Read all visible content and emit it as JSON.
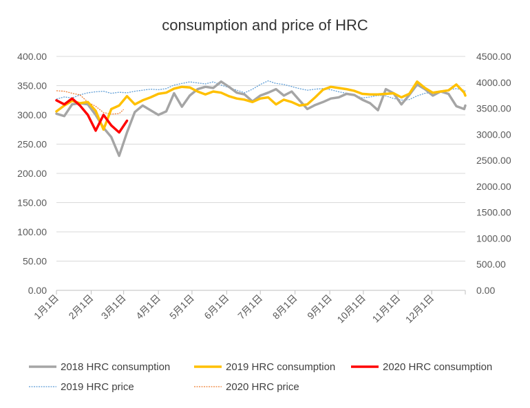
{
  "chart_data": {
    "type": "line",
    "title": "consumption and price of HRC",
    "x_axis": {
      "type": "date",
      "range": [
        "2020-01-01",
        "2020-12-31"
      ],
      "tick_labels": [
        "1月1日",
        "2月1日",
        "3月1日",
        "4月1日",
        "5月1日",
        "6月1日",
        "7月1日",
        "8月1日",
        "9月1日",
        "10月1日",
        "11月1日",
        "12月1日"
      ],
      "tick_dates": [
        "2020-01-01",
        "2020-02-01",
        "2020-03-01",
        "2020-04-01",
        "2020-05-01",
        "2020-06-01",
        "2020-07-01",
        "2020-08-01",
        "2020-09-01",
        "2020-10-01",
        "2020-11-01",
        "2020-12-01"
      ]
    },
    "y_axis_left": {
      "ylim": [
        0,
        400
      ],
      "tick_labels": [
        "0.00",
        "50.00",
        "100.00",
        "150.00",
        "200.00",
        "250.00",
        "300.00",
        "350.00",
        "400.00"
      ]
    },
    "y_axis_right": {
      "ylim": [
        0,
        4500
      ],
      "tick_labels": [
        "0.00",
        "500.00",
        "1000.00",
        "1500.00",
        "2000.00",
        "2500.00",
        "3000.00",
        "3500.00",
        "4000.00",
        "4500.00"
      ]
    },
    "grid": "horizontal",
    "legend_position": "bottom",
    "series": [
      {
        "name": "2018 HRC consumption",
        "axis": "left",
        "color": "#a5a5a5",
        "style": "solid",
        "points": [
          [
            "2020-01-01",
            302
          ],
          [
            "2020-01-08",
            298
          ],
          [
            "2020-01-15",
            318
          ],
          [
            "2020-01-22",
            320
          ],
          [
            "2020-01-29",
            318
          ],
          [
            "2020-02-05",
            300
          ],
          [
            "2020-02-12",
            278
          ],
          [
            "2020-02-19",
            262
          ],
          [
            "2020-02-26",
            230
          ],
          [
            "2020-03-04",
            270
          ],
          [
            "2020-03-11",
            305
          ],
          [
            "2020-03-18",
            316
          ],
          [
            "2020-03-25",
            308
          ],
          [
            "2020-04-01",
            300
          ],
          [
            "2020-04-08",
            306
          ],
          [
            "2020-04-15",
            337
          ],
          [
            "2020-04-22",
            314
          ],
          [
            "2020-04-29",
            333
          ],
          [
            "2020-05-06",
            344
          ],
          [
            "2020-05-13",
            348
          ],
          [
            "2020-05-20",
            346
          ],
          [
            "2020-05-27",
            357
          ],
          [
            "2020-06-03",
            348
          ],
          [
            "2020-06-10",
            338
          ],
          [
            "2020-06-17",
            335
          ],
          [
            "2020-06-24",
            323
          ],
          [
            "2020-07-01",
            333
          ],
          [
            "2020-07-08",
            338
          ],
          [
            "2020-07-15",
            344
          ],
          [
            "2020-07-22",
            333
          ],
          [
            "2020-07-29",
            340
          ],
          [
            "2020-08-05",
            325
          ],
          [
            "2020-08-12",
            310
          ],
          [
            "2020-08-19",
            317
          ],
          [
            "2020-08-26",
            322
          ],
          [
            "2020-09-02",
            328
          ],
          [
            "2020-09-09",
            330
          ],
          [
            "2020-09-16",
            336
          ],
          [
            "2020-09-23",
            334
          ],
          [
            "2020-09-30",
            326
          ],
          [
            "2020-10-07",
            320
          ],
          [
            "2020-10-14",
            308
          ],
          [
            "2020-10-21",
            344
          ],
          [
            "2020-10-28",
            337
          ],
          [
            "2020-11-04",
            318
          ],
          [
            "2020-11-11",
            334
          ],
          [
            "2020-11-18",
            352
          ],
          [
            "2020-11-25",
            344
          ],
          [
            "2020-12-02",
            333
          ],
          [
            "2020-12-09",
            340
          ],
          [
            "2020-12-16",
            336
          ],
          [
            "2020-12-23",
            315
          ],
          [
            "2020-12-30",
            310
          ],
          [
            "2020-12-31",
            316
          ]
        ]
      },
      {
        "name": "2019 HRC consumption",
        "axis": "left",
        "color": "#ffc000",
        "style": "solid",
        "points": [
          [
            "2020-01-01",
            306
          ],
          [
            "2020-01-08",
            316
          ],
          [
            "2020-01-15",
            324
          ],
          [
            "2020-01-22",
            320
          ],
          [
            "2020-01-29",
            322
          ],
          [
            "2020-02-05",
            307
          ],
          [
            "2020-02-12",
            275
          ],
          [
            "2020-02-19",
            310
          ],
          [
            "2020-02-26",
            316
          ],
          [
            "2020-03-04",
            332
          ],
          [
            "2020-03-11",
            318
          ],
          [
            "2020-03-18",
            325
          ],
          [
            "2020-03-25",
            330
          ],
          [
            "2020-04-01",
            336
          ],
          [
            "2020-04-08",
            338
          ],
          [
            "2020-04-15",
            345
          ],
          [
            "2020-04-22",
            348
          ],
          [
            "2020-04-29",
            347
          ],
          [
            "2020-05-06",
            340
          ],
          [
            "2020-05-13",
            335
          ],
          [
            "2020-05-20",
            340
          ],
          [
            "2020-05-27",
            338
          ],
          [
            "2020-06-03",
            332
          ],
          [
            "2020-06-10",
            328
          ],
          [
            "2020-06-17",
            326
          ],
          [
            "2020-06-24",
            322
          ],
          [
            "2020-07-01",
            328
          ],
          [
            "2020-07-08",
            330
          ],
          [
            "2020-07-15",
            318
          ],
          [
            "2020-07-22",
            326
          ],
          [
            "2020-07-29",
            322
          ],
          [
            "2020-08-05",
            316
          ],
          [
            "2020-08-12",
            318
          ],
          [
            "2020-08-19",
            330
          ],
          [
            "2020-08-26",
            343
          ],
          [
            "2020-09-02",
            348
          ],
          [
            "2020-09-09",
            346
          ],
          [
            "2020-09-16",
            344
          ],
          [
            "2020-09-23",
            341
          ],
          [
            "2020-09-30",
            336
          ],
          [
            "2020-10-07",
            335
          ],
          [
            "2020-10-14",
            335
          ],
          [
            "2020-10-21",
            336
          ],
          [
            "2020-10-28",
            337
          ],
          [
            "2020-11-04",
            330
          ],
          [
            "2020-11-11",
            336
          ],
          [
            "2020-11-18",
            357
          ],
          [
            "2020-11-25",
            346
          ],
          [
            "2020-12-02",
            338
          ],
          [
            "2020-12-09",
            340
          ],
          [
            "2020-12-16",
            342
          ],
          [
            "2020-12-23",
            352
          ],
          [
            "2020-12-30",
            338
          ],
          [
            "2020-12-31",
            333
          ]
        ]
      },
      {
        "name": "2020 HRC consumption",
        "axis": "left",
        "color": "#ff0000",
        "style": "solid",
        "points": [
          [
            "2020-01-01",
            325
          ],
          [
            "2020-01-08",
            318
          ],
          [
            "2020-01-15",
            328
          ],
          [
            "2020-01-22",
            316
          ],
          [
            "2020-01-29",
            300
          ],
          [
            "2020-02-05",
            273
          ],
          [
            "2020-02-12",
            300
          ],
          [
            "2020-02-19",
            282
          ],
          [
            "2020-02-26",
            270
          ],
          [
            "2020-03-04",
            290
          ]
        ]
      },
      {
        "name": "2019 HRC price",
        "axis": "right",
        "color": "#5b9bd5",
        "style": "dotted",
        "points": [
          [
            "2020-01-01",
            3680
          ],
          [
            "2020-01-08",
            3720
          ],
          [
            "2020-01-15",
            3700
          ],
          [
            "2020-01-22",
            3760
          ],
          [
            "2020-01-29",
            3800
          ],
          [
            "2020-02-05",
            3820
          ],
          [
            "2020-02-12",
            3830
          ],
          [
            "2020-02-19",
            3790
          ],
          [
            "2020-02-26",
            3810
          ],
          [
            "2020-03-04",
            3800
          ],
          [
            "2020-03-11",
            3830
          ],
          [
            "2020-03-18",
            3850
          ],
          [
            "2020-03-25",
            3870
          ],
          [
            "2020-04-01",
            3860
          ],
          [
            "2020-04-08",
            3880
          ],
          [
            "2020-04-15",
            3950
          ],
          [
            "2020-04-22",
            3980
          ],
          [
            "2020-04-29",
            4010
          ],
          [
            "2020-05-06",
            3990
          ],
          [
            "2020-05-13",
            3970
          ],
          [
            "2020-05-20",
            4010
          ],
          [
            "2020-05-27",
            3950
          ],
          [
            "2020-06-03",
            3900
          ],
          [
            "2020-06-10",
            3850
          ],
          [
            "2020-06-17",
            3800
          ],
          [
            "2020-06-24",
            3870
          ],
          [
            "2020-07-01",
            3960
          ],
          [
            "2020-07-08",
            4030
          ],
          [
            "2020-07-15",
            3980
          ],
          [
            "2020-07-22",
            3960
          ],
          [
            "2020-07-29",
            3920
          ],
          [
            "2020-08-05",
            3880
          ],
          [
            "2020-08-12",
            3850
          ],
          [
            "2020-08-19",
            3870
          ],
          [
            "2020-08-26",
            3880
          ],
          [
            "2020-09-02",
            3860
          ],
          [
            "2020-09-09",
            3820
          ],
          [
            "2020-09-16",
            3790
          ],
          [
            "2020-09-23",
            3760
          ],
          [
            "2020-09-30",
            3700
          ],
          [
            "2020-10-07",
            3720
          ],
          [
            "2020-10-14",
            3750
          ],
          [
            "2020-10-21",
            3740
          ],
          [
            "2020-10-28",
            3690
          ],
          [
            "2020-11-04",
            3660
          ],
          [
            "2020-11-11",
            3670
          ],
          [
            "2020-11-18",
            3740
          ],
          [
            "2020-11-25",
            3790
          ],
          [
            "2020-12-02",
            3810
          ],
          [
            "2020-12-09",
            3840
          ],
          [
            "2020-12-16",
            3860
          ],
          [
            "2020-12-23",
            3880
          ],
          [
            "2020-12-30",
            3850
          ],
          [
            "2020-12-31",
            3830
          ]
        ]
      },
      {
        "name": "2020 HRC price",
        "axis": "right",
        "color": "#ed7d31",
        "style": "dotted",
        "points": [
          [
            "2020-01-01",
            3840
          ],
          [
            "2020-01-08",
            3830
          ],
          [
            "2020-01-15",
            3790
          ],
          [
            "2020-01-22",
            3760
          ],
          [
            "2020-01-29",
            3620
          ],
          [
            "2020-02-05",
            3540
          ],
          [
            "2020-02-12",
            3420
          ],
          [
            "2020-02-19",
            3390
          ],
          [
            "2020-02-26",
            3400
          ],
          [
            "2020-03-01",
            3480
          ]
        ]
      }
    ]
  }
}
